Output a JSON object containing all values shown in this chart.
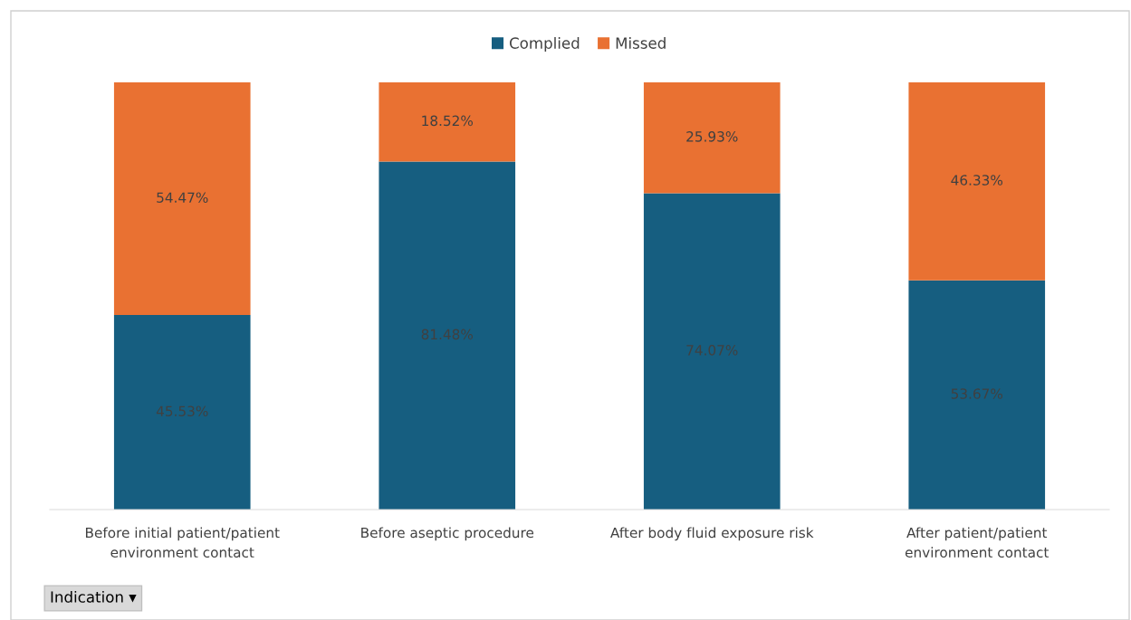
{
  "chart_data": {
    "type": "bar",
    "stacked": true,
    "legend": "top",
    "grid": false,
    "categories": [
      "Before initial patient/patient environment contact",
      "Before aseptic procedure",
      "After body fluid exposure risk",
      "After patient/patient environment contact"
    ],
    "series": [
      {
        "name": "Complied",
        "color": "#165e80",
        "values": [
          45.53,
          81.48,
          74.07,
          53.67
        ],
        "value_labels": [
          "45.53%",
          "81.48%",
          "74.07%",
          "53.67%"
        ]
      },
      {
        "name": "Missed",
        "color": "#e97132",
        "values": [
          54.47,
          18.52,
          25.93,
          46.33
        ],
        "value_labels": [
          "54.47%",
          "18.52%",
          "25.93%",
          "46.33%"
        ]
      }
    ],
    "annotations": [
      "Indication ▾"
    ]
  }
}
